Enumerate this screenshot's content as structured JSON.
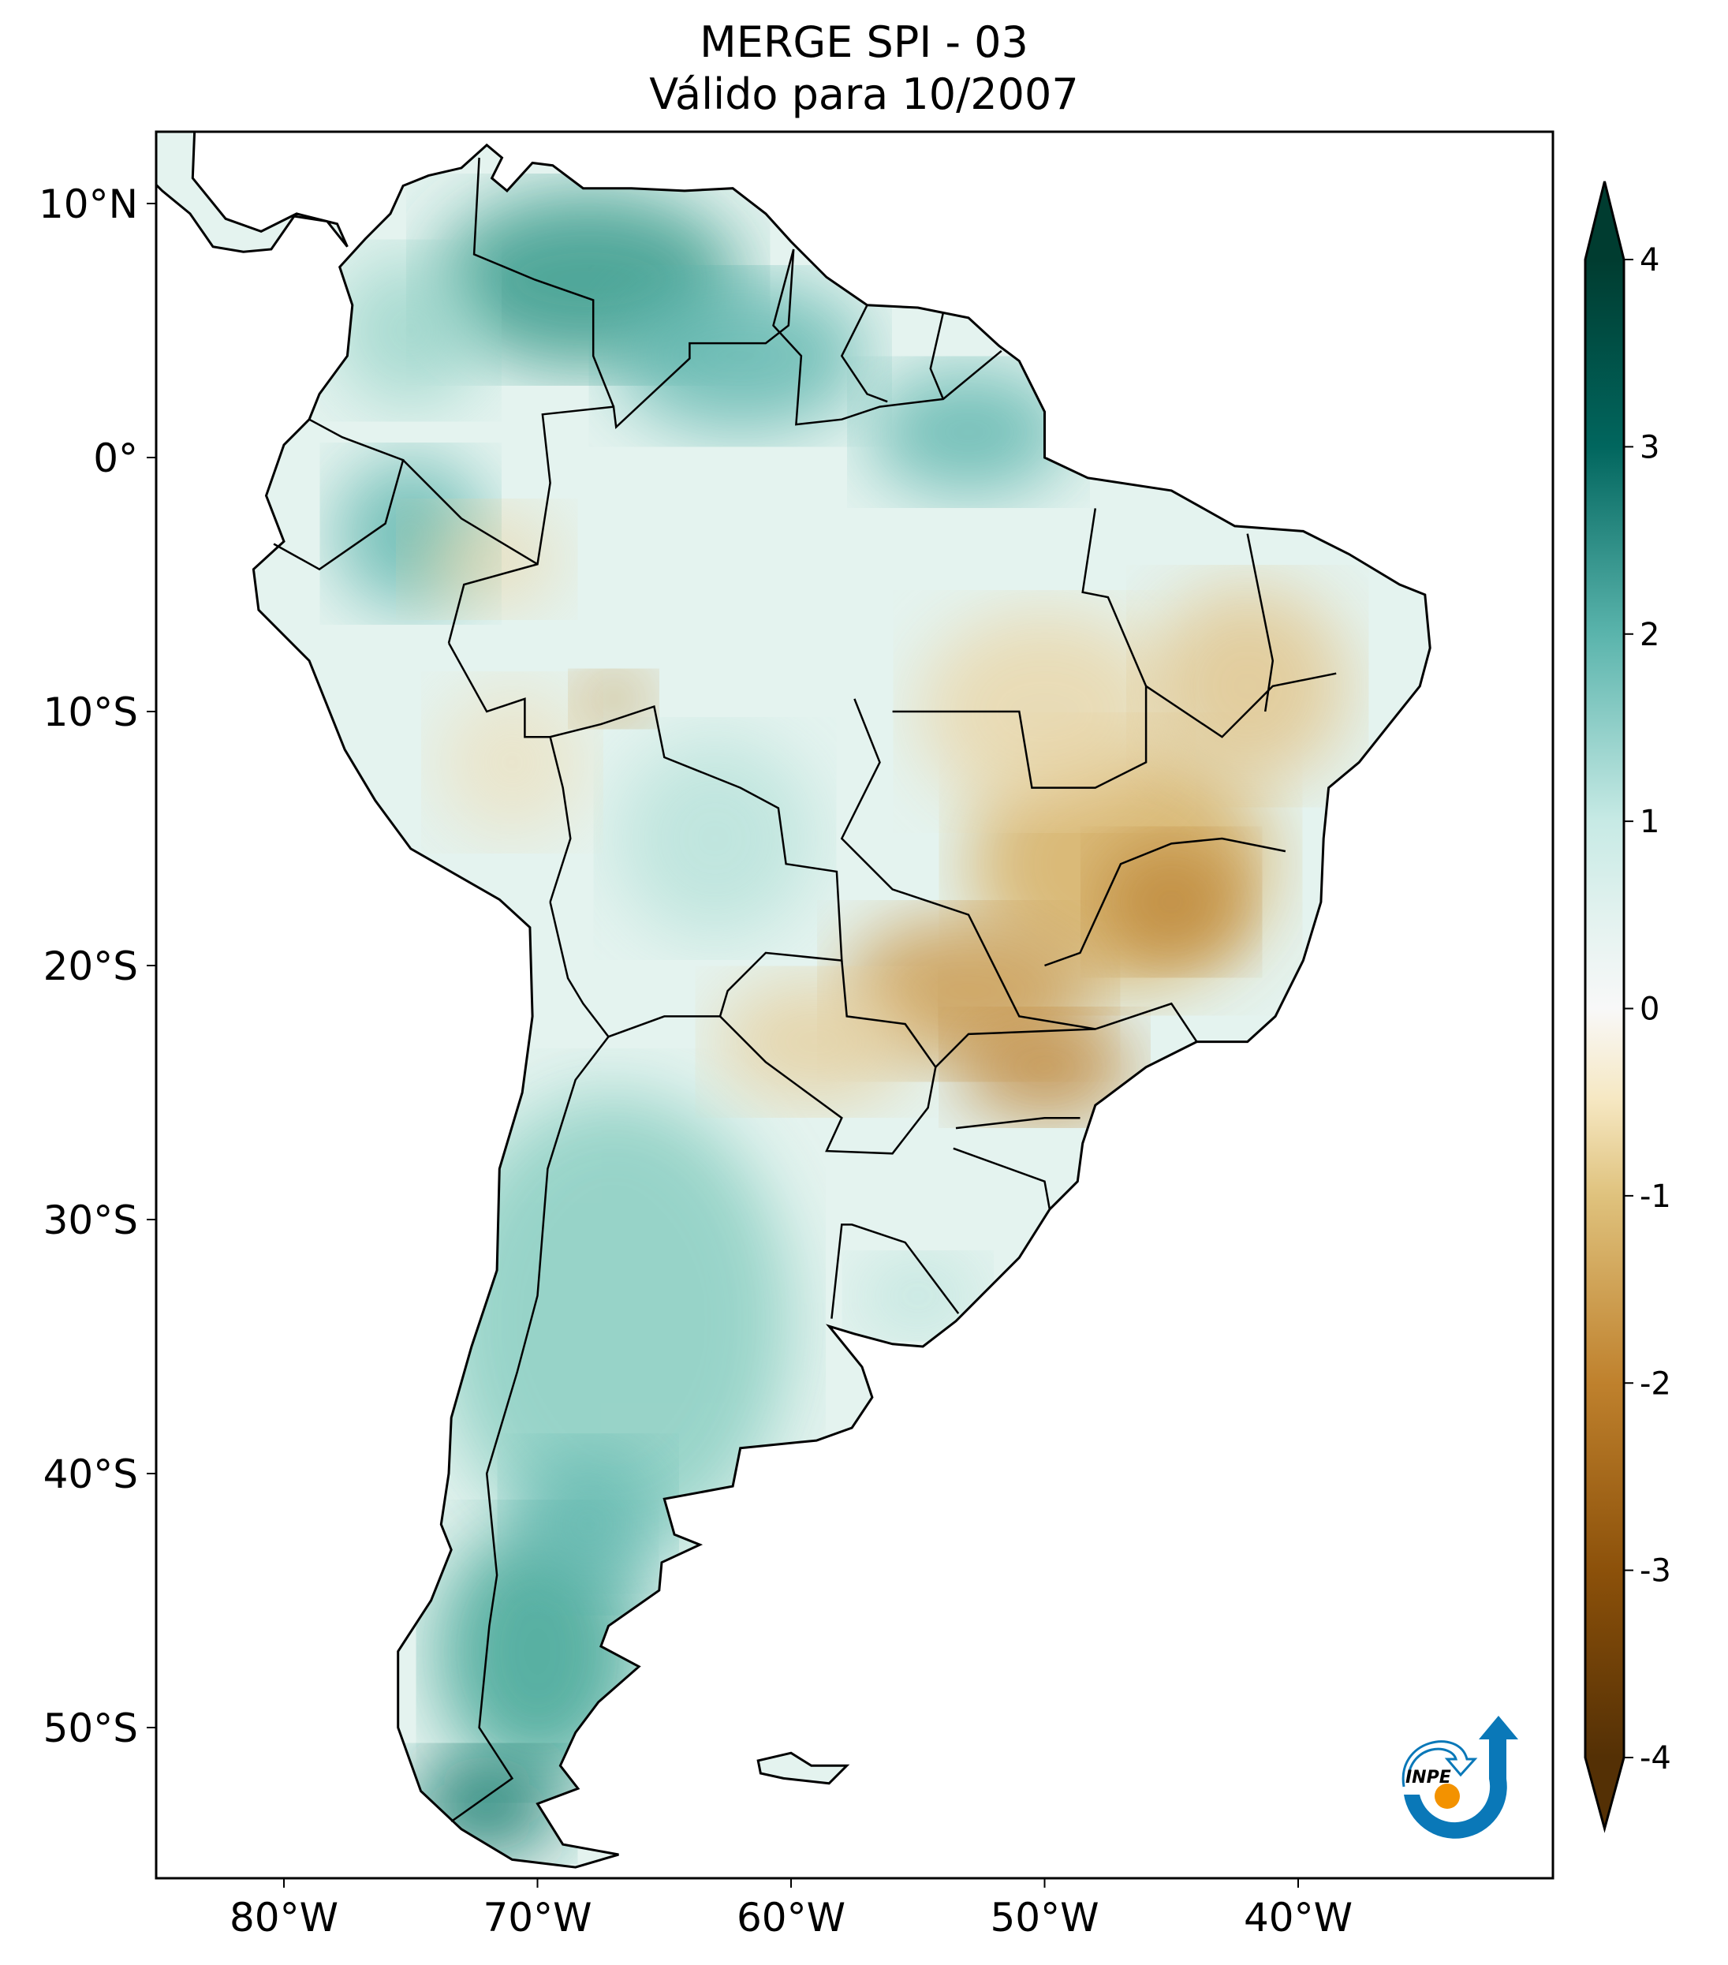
{
  "title": {
    "line1": "MERGE   SPI - 03",
    "line2": "Válido para 10/2007"
  },
  "map": {
    "lon_ticks": [
      {
        "value": -80,
        "label": "80°W"
      },
      {
        "value": -70,
        "label": "70°W"
      },
      {
        "value": -60,
        "label": "60°W"
      },
      {
        "value": -50,
        "label": "50°W"
      },
      {
        "value": -40,
        "label": "40°W"
      }
    ],
    "lat_ticks": [
      {
        "value": 10,
        "label": "10°N"
      },
      {
        "value": 0,
        "label": "0°"
      },
      {
        "value": -10,
        "label": "10°S"
      },
      {
        "value": -20,
        "label": "20°S"
      },
      {
        "value": -30,
        "label": "30°S"
      },
      {
        "value": -40,
        "label": "40°S"
      },
      {
        "value": -50,
        "label": "50°S"
      }
    ],
    "extent": {
      "lon": [
        -85,
        -30
      ],
      "lat": [
        -56,
        13
      ]
    }
  },
  "colorbar": {
    "ticks": [
      "4",
      "3",
      "2",
      "1",
      "0",
      "-1",
      "-2",
      "-3",
      "-4"
    ],
    "range": [
      -4,
      4
    ],
    "extend": "both",
    "colors": {
      "4": "#003c30",
      "3": "#0f6b62",
      "2": "#5ab4ac",
      "1": "#c7eae5",
      "0": "#f6f6f6",
      "-1": "#f6e8c3",
      "-2": "#d8b365",
      "-3": "#9a5a16",
      "-4": "#543005"
    }
  },
  "logo": {
    "text": "INPE",
    "blue": "#0a78b8",
    "orange": "#f39200"
  }
}
